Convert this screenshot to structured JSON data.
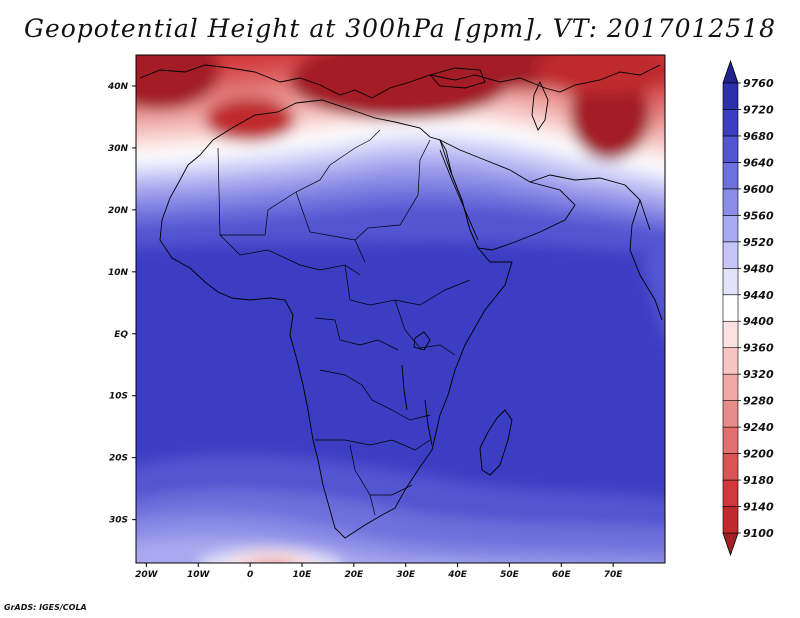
{
  "title": "Geopotential Height at 300hPa [gpm], VT: 2017012518",
  "credit": "GrADS: IGES/COLA",
  "colors": {
    "frame": "#000000",
    "coast": "#000000"
  },
  "map": {
    "lon_range": [
      -22,
      80
    ],
    "lat_range": [
      -37,
      45
    ],
    "lon_ticks": [
      {
        "value": -20,
        "label": "20W"
      },
      {
        "value": -10,
        "label": "10W"
      },
      {
        "value": 0,
        "label": "0"
      },
      {
        "value": 10,
        "label": "10E"
      },
      {
        "value": 20,
        "label": "20E"
      },
      {
        "value": 30,
        "label": "30E"
      },
      {
        "value": 40,
        "label": "40E"
      },
      {
        "value": 50,
        "label": "50E"
      },
      {
        "value": 60,
        "label": "60E"
      },
      {
        "value": 70,
        "label": "70E"
      }
    ],
    "lat_ticks": [
      {
        "value": 40,
        "label": "40N"
      },
      {
        "value": 30,
        "label": "30N"
      },
      {
        "value": 20,
        "label": "20N"
      },
      {
        "value": 10,
        "label": "10N"
      },
      {
        "value": 0,
        "label": "EQ"
      },
      {
        "value": -10,
        "label": "10S"
      },
      {
        "value": -20,
        "label": "20S"
      },
      {
        "value": -30,
        "label": "30S"
      }
    ]
  },
  "chart_data": {
    "type": "heatmap",
    "title": "Geopotential Height at 300hPa [gpm], VT: 2017012518",
    "variable": "Geopotential Height",
    "level": "300hPa",
    "units": "gpm",
    "valid_time": "2017012518",
    "colorbar": {
      "levels": [
        9100,
        9140,
        9180,
        9200,
        9240,
        9280,
        9320,
        9360,
        9400,
        9440,
        9480,
        9520,
        9560,
        9600,
        9640,
        9680,
        9720,
        9760
      ],
      "colors": [
        "#a31f26",
        "#bf2a2f",
        "#d2373b",
        "#da5456",
        "#e1706f",
        "#e88c8a",
        "#efa8a6",
        "#f6c5c3",
        "#fbe2e1",
        "#ffffff",
        "#e2e3fb",
        "#c5c6f5",
        "#a8a9ef",
        "#8b8ce6",
        "#6e70dc",
        "#5254d1",
        "#3b3ec2",
        "#2d2fab",
        "#22238f"
      ]
    },
    "field_description": "High heights (~9640-9720 gpm) over tropical Africa; a sharp gradient near 25-30N with low heights (~9100-9200 gpm) over North Africa, the Mediterranean and the Middle East; a weaker gradient south of 30S with a low off southwest Africa."
  }
}
